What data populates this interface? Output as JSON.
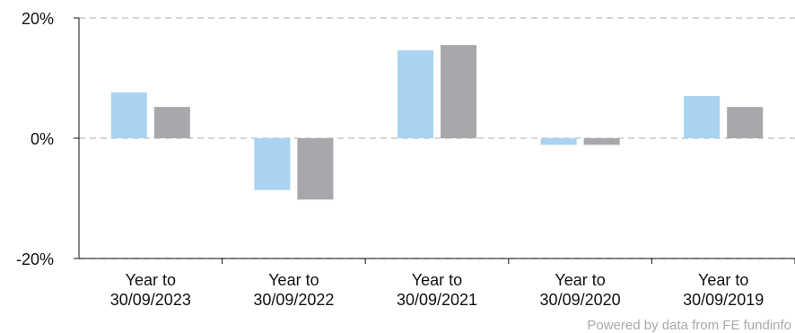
{
  "chart_data": {
    "type": "bar",
    "categories": [
      [
        "Year to",
        "30/09/2023"
      ],
      [
        "Year to",
        "30/09/2022"
      ],
      [
        "Year to",
        "30/09/2021"
      ],
      [
        "Year to",
        "30/09/2020"
      ],
      [
        "Year to",
        "30/09/2019"
      ]
    ],
    "series": [
      {
        "values": [
          7.6,
          -8.6,
          14.6,
          -1.1,
          7.0
        ],
        "color": "#a8d3f1"
      },
      {
        "values": [
          5.2,
          -10.2,
          15.5,
          -1.1,
          5.2
        ],
        "color": "#a7a8ab"
      }
    ],
    "ylim": [
      -20,
      20
    ],
    "yticks": [
      20,
      0,
      -20
    ],
    "ytick_labels": [
      "20%",
      "0%",
      "-20%"
    ],
    "grid": true,
    "legend": "none"
  },
  "credit": "Powered by data from FE fundinfo"
}
